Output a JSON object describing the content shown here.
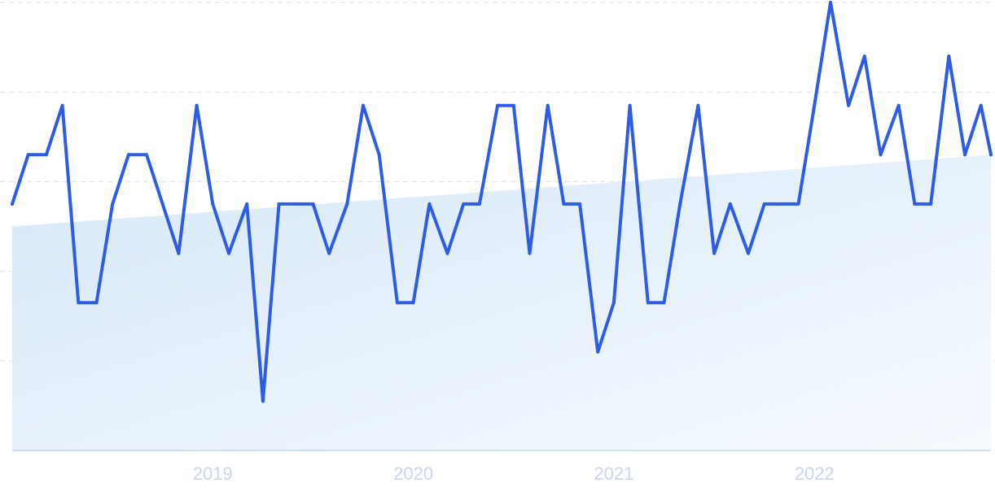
{
  "chart_data": {
    "type": "line",
    "title": "",
    "xlabel": "",
    "ylabel": "",
    "x_tick_labels": [
      {
        "label": "2019",
        "x": 2019.0
      },
      {
        "label": "2020",
        "x": 2020.0
      },
      {
        "label": "2021",
        "x": 2021.0
      },
      {
        "label": "2022",
        "x": 2022.0
      }
    ],
    "xlim": [
      2018.0,
      2022.88
    ],
    "ylim": [
      0,
      100
    ],
    "y_gridlines": [
      20,
      40,
      60,
      80,
      100
    ],
    "grid": true,
    "legend": "none",
    "series": [
      {
        "values": [
          {
            "x": 2018.0,
            "y": 55
          },
          {
            "x": 2018.08,
            "y": 66
          },
          {
            "x": 2018.17,
            "y": 66
          },
          {
            "x": 2018.25,
            "y": 77
          },
          {
            "x": 2018.33,
            "y": 33
          },
          {
            "x": 2018.42,
            "y": 33
          },
          {
            "x": 2018.5,
            "y": 55
          },
          {
            "x": 2018.58,
            "y": 66
          },
          {
            "x": 2018.67,
            "y": 66
          },
          {
            "x": 2018.75,
            "y": 55
          },
          {
            "x": 2018.83,
            "y": 44
          },
          {
            "x": 2018.92,
            "y": 77
          },
          {
            "x": 2019.0,
            "y": 55
          },
          {
            "x": 2019.08,
            "y": 44
          },
          {
            "x": 2019.17,
            "y": 55
          },
          {
            "x": 2019.25,
            "y": 11
          },
          {
            "x": 2019.33,
            "y": 55
          },
          {
            "x": 2019.42,
            "y": 55
          },
          {
            "x": 2019.5,
            "y": 55
          },
          {
            "x": 2019.58,
            "y": 44
          },
          {
            "x": 2019.67,
            "y": 55
          },
          {
            "x": 2019.75,
            "y": 77
          },
          {
            "x": 2019.83,
            "y": 66
          },
          {
            "x": 2019.92,
            "y": 33
          },
          {
            "x": 2020.0,
            "y": 33
          },
          {
            "x": 2020.08,
            "y": 55
          },
          {
            "x": 2020.17,
            "y": 44
          },
          {
            "x": 2020.25,
            "y": 55
          },
          {
            "x": 2020.33,
            "y": 55
          },
          {
            "x": 2020.42,
            "y": 77
          },
          {
            "x": 2020.5,
            "y": 77
          },
          {
            "x": 2020.58,
            "y": 44
          },
          {
            "x": 2020.67,
            "y": 77
          },
          {
            "x": 2020.75,
            "y": 55
          },
          {
            "x": 2020.83,
            "y": 55
          },
          {
            "x": 2020.92,
            "y": 22
          },
          {
            "x": 2021.0,
            "y": 33
          },
          {
            "x": 2021.08,
            "y": 77
          },
          {
            "x": 2021.17,
            "y": 33
          },
          {
            "x": 2021.25,
            "y": 33
          },
          {
            "x": 2021.33,
            "y": 55
          },
          {
            "x": 2021.42,
            "y": 77
          },
          {
            "x": 2021.5,
            "y": 44
          },
          {
            "x": 2021.58,
            "y": 55
          },
          {
            "x": 2021.67,
            "y": 44
          },
          {
            "x": 2021.75,
            "y": 55
          },
          {
            "x": 2021.83,
            "y": 55
          },
          {
            "x": 2021.92,
            "y": 55
          },
          {
            "x": 2022.0,
            "y": 77
          },
          {
            "x": 2022.08,
            "y": 100
          },
          {
            "x": 2022.17,
            "y": 77
          },
          {
            "x": 2022.25,
            "y": 88
          },
          {
            "x": 2022.33,
            "y": 66
          },
          {
            "x": 2022.42,
            "y": 77
          },
          {
            "x": 2022.5,
            "y": 55
          },
          {
            "x": 2022.58,
            "y": 55
          },
          {
            "x": 2022.67,
            "y": 88
          },
          {
            "x": 2022.75,
            "y": 66
          },
          {
            "x": 2022.83,
            "y": 77
          },
          {
            "x": 2022.88,
            "y": 66
          }
        ]
      }
    ],
    "trend": {
      "start": {
        "x": 2018.0,
        "y": 50
      },
      "end": {
        "x": 2022.88,
        "y": 66
      }
    },
    "colors": {
      "line": "#2e5ce6",
      "area_fill_top": "#d6e8f8",
      "area_fill_bottom": "#f6faff",
      "tick_label": "#c8d6f6",
      "grid": "#d5e2ee"
    }
  }
}
